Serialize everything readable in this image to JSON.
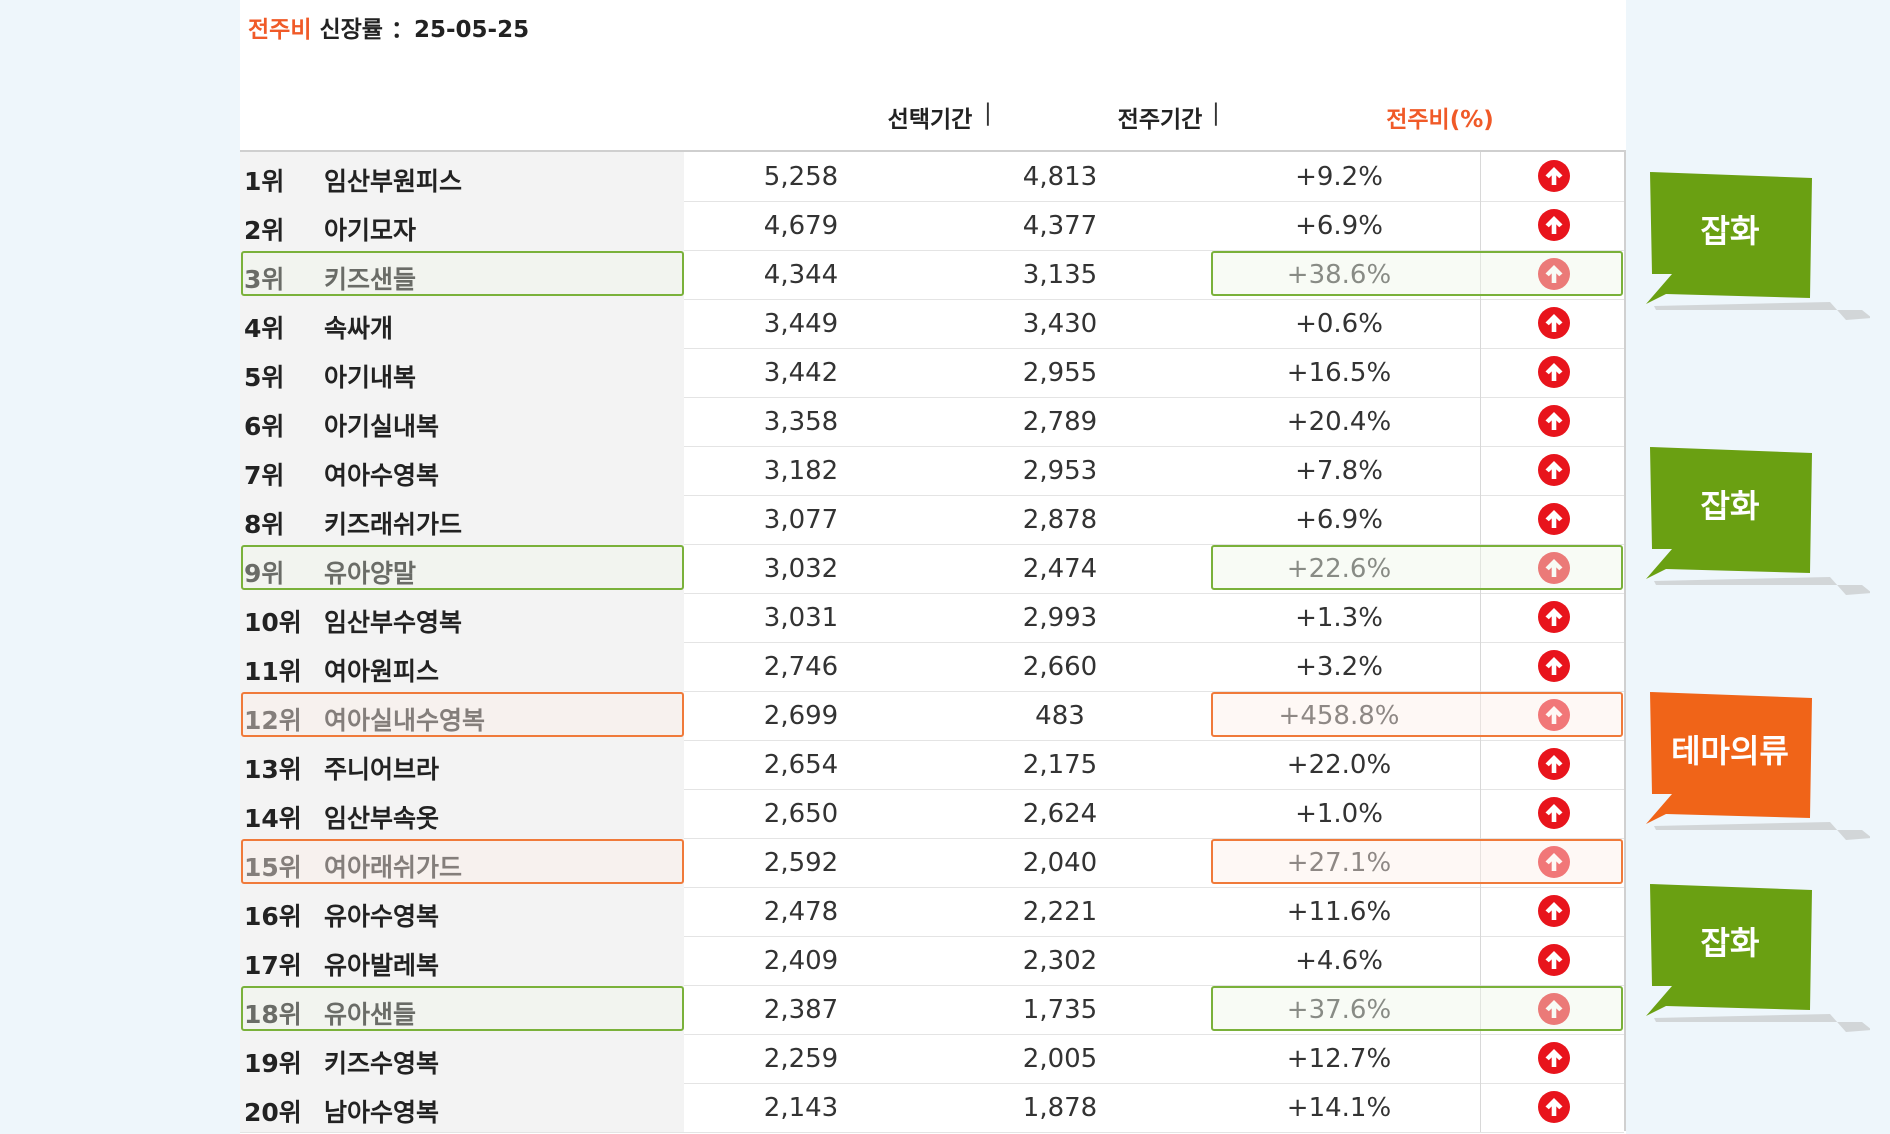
{
  "title": {
    "label": "전주비",
    "text": "신장률 ：25-05-25"
  },
  "headers": {
    "col1": "선택기간",
    "sep": "|",
    "col2": "전주기간",
    "col3": "전주비(%)"
  },
  "colors": {
    "accent": "#f05a28",
    "green_highlight": "#7ab13a",
    "orange_highlight": "#f07a3a",
    "up_icon": "#e8141c",
    "green_tag": "#6aa012",
    "orange_tag": "#f06418"
  },
  "rows": [
    {
      "rank": "1위",
      "name": "임산부원피스",
      "current": "5,258",
      "previous": "4,813",
      "change": "+9.2%",
      "trend_icon": "arrow-up-circle-icon",
      "highlight": ""
    },
    {
      "rank": "2위",
      "name": "아기모자",
      "current": "4,679",
      "previous": "4,377",
      "change": "+6.9%",
      "trend_icon": "arrow-up-circle-icon",
      "highlight": ""
    },
    {
      "rank": "3위",
      "name": "키즈샌들",
      "current": "4,344",
      "previous": "3,135",
      "change": "+38.6%",
      "trend_icon": "arrow-up-circle-icon",
      "highlight": "green"
    },
    {
      "rank": "4위",
      "name": "속싸개",
      "current": "3,449",
      "previous": "3,430",
      "change": "+0.6%",
      "trend_icon": "arrow-up-circle-icon",
      "highlight": ""
    },
    {
      "rank": "5위",
      "name": "아기내복",
      "current": "3,442",
      "previous": "2,955",
      "change": "+16.5%",
      "trend_icon": "arrow-up-circle-icon",
      "highlight": ""
    },
    {
      "rank": "6위",
      "name": "아기실내복",
      "current": "3,358",
      "previous": "2,789",
      "change": "+20.4%",
      "trend_icon": "arrow-up-circle-icon",
      "highlight": ""
    },
    {
      "rank": "7위",
      "name": "여아수영복",
      "current": "3,182",
      "previous": "2,953",
      "change": "+7.8%",
      "trend_icon": "arrow-up-circle-icon",
      "highlight": ""
    },
    {
      "rank": "8위",
      "name": "키즈래쉬가드",
      "current": "3,077",
      "previous": "2,878",
      "change": "+6.9%",
      "trend_icon": "arrow-up-circle-icon",
      "highlight": ""
    },
    {
      "rank": "9위",
      "name": "유아양말",
      "current": "3,032",
      "previous": "2,474",
      "change": "+22.6%",
      "trend_icon": "arrow-up-circle-icon",
      "highlight": "green"
    },
    {
      "rank": "10위",
      "name": "임산부수영복",
      "current": "3,031",
      "previous": "2,993",
      "change": "+1.3%",
      "trend_icon": "arrow-up-circle-icon",
      "highlight": ""
    },
    {
      "rank": "11위",
      "name": "여아원피스",
      "current": "2,746",
      "previous": "2,660",
      "change": "+3.2%",
      "trend_icon": "arrow-up-circle-icon",
      "highlight": ""
    },
    {
      "rank": "12위",
      "name": "여아실내수영복",
      "current": "2,699",
      "previous": "483",
      "change": "+458.8%",
      "trend_icon": "arrow-up-circle-icon",
      "highlight": "orange"
    },
    {
      "rank": "13위",
      "name": "주니어브라",
      "current": "2,654",
      "previous": "2,175",
      "change": "+22.0%",
      "trend_icon": "arrow-up-circle-icon",
      "highlight": ""
    },
    {
      "rank": "14위",
      "name": "임산부속옷",
      "current": "2,650",
      "previous": "2,624",
      "change": "+1.0%",
      "trend_icon": "arrow-up-circle-icon",
      "highlight": ""
    },
    {
      "rank": "15위",
      "name": "여아래쉬가드",
      "current": "2,592",
      "previous": "2,040",
      "change": "+27.1%",
      "trend_icon": "arrow-up-circle-icon",
      "highlight": "orange"
    },
    {
      "rank": "16위",
      "name": "유아수영복",
      "current": "2,478",
      "previous": "2,221",
      "change": "+11.6%",
      "trend_icon": "arrow-up-circle-icon",
      "highlight": ""
    },
    {
      "rank": "17위",
      "name": "유아발레복",
      "current": "2,409",
      "previous": "2,302",
      "change": "+4.6%",
      "trend_icon": "arrow-up-circle-icon",
      "highlight": ""
    },
    {
      "rank": "18위",
      "name": "유아샌들",
      "current": "2,387",
      "previous": "1,735",
      "change": "+37.6%",
      "trend_icon": "arrow-up-circle-icon",
      "highlight": "green"
    },
    {
      "rank": "19위",
      "name": "키즈수영복",
      "current": "2,259",
      "previous": "2,005",
      "change": "+12.7%",
      "trend_icon": "arrow-up-circle-icon",
      "highlight": ""
    },
    {
      "rank": "20위",
      "name": "남아수영복",
      "current": "2,143",
      "previous": "1,878",
      "change": "+14.1%",
      "trend_icon": "arrow-up-circle-icon",
      "highlight": ""
    }
  ],
  "tags": [
    {
      "text": "잡화",
      "color": "#6aa012"
    },
    {
      "text": "잡화",
      "color": "#6aa012"
    },
    {
      "text": "테마의류",
      "color": "#f06418"
    },
    {
      "text": "잡화",
      "color": "#6aa012"
    }
  ]
}
